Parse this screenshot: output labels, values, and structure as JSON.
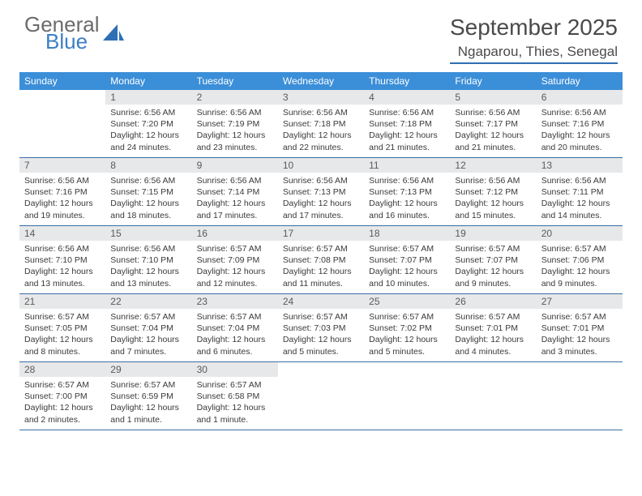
{
  "logo": {
    "general": "General",
    "blue": "Blue"
  },
  "title": "September 2025",
  "location": "Ngaparou, Thies, Senegal",
  "colors": {
    "header_bg": "#3b8ed8",
    "header_text": "#ffffff",
    "daynum_bg": "#e7e8e9",
    "daynum_text": "#5a5a5a",
    "body_text": "#3a3a3a",
    "rule": "#3b6fa5",
    "logo_blue": "#3b7fc4",
    "month_text": "#4a4a4a"
  },
  "day_names": [
    "Sunday",
    "Monday",
    "Tuesday",
    "Wednesday",
    "Thursday",
    "Friday",
    "Saturday"
  ],
  "weeks": [
    [
      {
        "n": "",
        "sr": "",
        "ss": "",
        "dl": ""
      },
      {
        "n": "1",
        "sr": "Sunrise: 6:56 AM",
        "ss": "Sunset: 7:20 PM",
        "dl": "Daylight: 12 hours and 24 minutes."
      },
      {
        "n": "2",
        "sr": "Sunrise: 6:56 AM",
        "ss": "Sunset: 7:19 PM",
        "dl": "Daylight: 12 hours and 23 minutes."
      },
      {
        "n": "3",
        "sr": "Sunrise: 6:56 AM",
        "ss": "Sunset: 7:18 PM",
        "dl": "Daylight: 12 hours and 22 minutes."
      },
      {
        "n": "4",
        "sr": "Sunrise: 6:56 AM",
        "ss": "Sunset: 7:18 PM",
        "dl": "Daylight: 12 hours and 21 minutes."
      },
      {
        "n": "5",
        "sr": "Sunrise: 6:56 AM",
        "ss": "Sunset: 7:17 PM",
        "dl": "Daylight: 12 hours and 21 minutes."
      },
      {
        "n": "6",
        "sr": "Sunrise: 6:56 AM",
        "ss": "Sunset: 7:16 PM",
        "dl": "Daylight: 12 hours and 20 minutes."
      }
    ],
    [
      {
        "n": "7",
        "sr": "Sunrise: 6:56 AM",
        "ss": "Sunset: 7:16 PM",
        "dl": "Daylight: 12 hours and 19 minutes."
      },
      {
        "n": "8",
        "sr": "Sunrise: 6:56 AM",
        "ss": "Sunset: 7:15 PM",
        "dl": "Daylight: 12 hours and 18 minutes."
      },
      {
        "n": "9",
        "sr": "Sunrise: 6:56 AM",
        "ss": "Sunset: 7:14 PM",
        "dl": "Daylight: 12 hours and 17 minutes."
      },
      {
        "n": "10",
        "sr": "Sunrise: 6:56 AM",
        "ss": "Sunset: 7:13 PM",
        "dl": "Daylight: 12 hours and 17 minutes."
      },
      {
        "n": "11",
        "sr": "Sunrise: 6:56 AM",
        "ss": "Sunset: 7:13 PM",
        "dl": "Daylight: 12 hours and 16 minutes."
      },
      {
        "n": "12",
        "sr": "Sunrise: 6:56 AM",
        "ss": "Sunset: 7:12 PM",
        "dl": "Daylight: 12 hours and 15 minutes."
      },
      {
        "n": "13",
        "sr": "Sunrise: 6:56 AM",
        "ss": "Sunset: 7:11 PM",
        "dl": "Daylight: 12 hours and 14 minutes."
      }
    ],
    [
      {
        "n": "14",
        "sr": "Sunrise: 6:56 AM",
        "ss": "Sunset: 7:10 PM",
        "dl": "Daylight: 12 hours and 13 minutes."
      },
      {
        "n": "15",
        "sr": "Sunrise: 6:56 AM",
        "ss": "Sunset: 7:10 PM",
        "dl": "Daylight: 12 hours and 13 minutes."
      },
      {
        "n": "16",
        "sr": "Sunrise: 6:57 AM",
        "ss": "Sunset: 7:09 PM",
        "dl": "Daylight: 12 hours and 12 minutes."
      },
      {
        "n": "17",
        "sr": "Sunrise: 6:57 AM",
        "ss": "Sunset: 7:08 PM",
        "dl": "Daylight: 12 hours and 11 minutes."
      },
      {
        "n": "18",
        "sr": "Sunrise: 6:57 AM",
        "ss": "Sunset: 7:07 PM",
        "dl": "Daylight: 12 hours and 10 minutes."
      },
      {
        "n": "19",
        "sr": "Sunrise: 6:57 AM",
        "ss": "Sunset: 7:07 PM",
        "dl": "Daylight: 12 hours and 9 minutes."
      },
      {
        "n": "20",
        "sr": "Sunrise: 6:57 AM",
        "ss": "Sunset: 7:06 PM",
        "dl": "Daylight: 12 hours and 9 minutes."
      }
    ],
    [
      {
        "n": "21",
        "sr": "Sunrise: 6:57 AM",
        "ss": "Sunset: 7:05 PM",
        "dl": "Daylight: 12 hours and 8 minutes."
      },
      {
        "n": "22",
        "sr": "Sunrise: 6:57 AM",
        "ss": "Sunset: 7:04 PM",
        "dl": "Daylight: 12 hours and 7 minutes."
      },
      {
        "n": "23",
        "sr": "Sunrise: 6:57 AM",
        "ss": "Sunset: 7:04 PM",
        "dl": "Daylight: 12 hours and 6 minutes."
      },
      {
        "n": "24",
        "sr": "Sunrise: 6:57 AM",
        "ss": "Sunset: 7:03 PM",
        "dl": "Daylight: 12 hours and 5 minutes."
      },
      {
        "n": "25",
        "sr": "Sunrise: 6:57 AM",
        "ss": "Sunset: 7:02 PM",
        "dl": "Daylight: 12 hours and 5 minutes."
      },
      {
        "n": "26",
        "sr": "Sunrise: 6:57 AM",
        "ss": "Sunset: 7:01 PM",
        "dl": "Daylight: 12 hours and 4 minutes."
      },
      {
        "n": "27",
        "sr": "Sunrise: 6:57 AM",
        "ss": "Sunset: 7:01 PM",
        "dl": "Daylight: 12 hours and 3 minutes."
      }
    ],
    [
      {
        "n": "28",
        "sr": "Sunrise: 6:57 AM",
        "ss": "Sunset: 7:00 PM",
        "dl": "Daylight: 12 hours and 2 minutes."
      },
      {
        "n": "29",
        "sr": "Sunrise: 6:57 AM",
        "ss": "Sunset: 6:59 PM",
        "dl": "Daylight: 12 hours and 1 minute."
      },
      {
        "n": "30",
        "sr": "Sunrise: 6:57 AM",
        "ss": "Sunset: 6:58 PM",
        "dl": "Daylight: 12 hours and 1 minute."
      },
      {
        "n": "",
        "sr": "",
        "ss": "",
        "dl": ""
      },
      {
        "n": "",
        "sr": "",
        "ss": "",
        "dl": ""
      },
      {
        "n": "",
        "sr": "",
        "ss": "",
        "dl": ""
      },
      {
        "n": "",
        "sr": "",
        "ss": "",
        "dl": ""
      }
    ]
  ]
}
